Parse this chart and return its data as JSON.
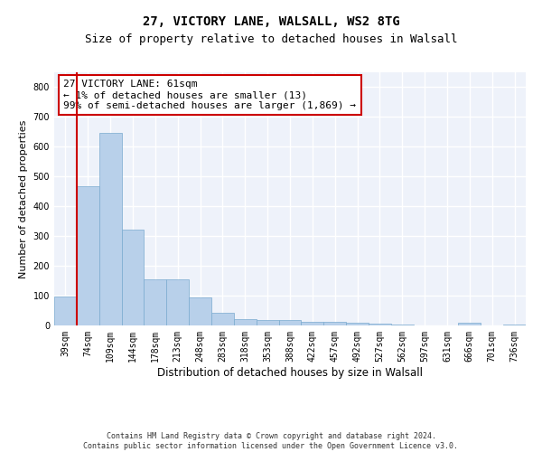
{
  "title": "27, VICTORY LANE, WALSALL, WS2 8TG",
  "subtitle": "Size of property relative to detached houses in Walsall",
  "xlabel": "Distribution of detached houses by size in Walsall",
  "ylabel": "Number of detached properties",
  "categories": [
    "39sqm",
    "74sqm",
    "109sqm",
    "144sqm",
    "178sqm",
    "213sqm",
    "248sqm",
    "283sqm",
    "318sqm",
    "353sqm",
    "388sqm",
    "422sqm",
    "457sqm",
    "492sqm",
    "527sqm",
    "562sqm",
    "597sqm",
    "631sqm",
    "666sqm",
    "701sqm",
    "736sqm"
  ],
  "values": [
    97,
    468,
    648,
    322,
    155,
    155,
    93,
    42,
    22,
    18,
    18,
    13,
    13,
    8,
    5,
    2,
    0,
    0,
    8,
    0,
    2
  ],
  "bar_color": "#b8d0ea",
  "bar_edge_color": "#7aaacf",
  "annotation_box_color": "#cc0000",
  "annotation_text": "27 VICTORY LANE: 61sqm\n← 1% of detached houses are smaller (13)\n99% of semi-detached houses are larger (1,869) →",
  "vline_x": 0.5,
  "ylim": [
    0,
    850
  ],
  "yticks": [
    0,
    100,
    200,
    300,
    400,
    500,
    600,
    700,
    800
  ],
  "background_color": "#eef2fa",
  "grid_color": "#ffffff",
  "footer": "Contains HM Land Registry data © Crown copyright and database right 2024.\nContains public sector information licensed under the Open Government Licence v3.0.",
  "title_fontsize": 10,
  "subtitle_fontsize": 9,
  "xlabel_fontsize": 8.5,
  "ylabel_fontsize": 8,
  "tick_fontsize": 7,
  "annotation_fontsize": 8,
  "footer_fontsize": 6
}
